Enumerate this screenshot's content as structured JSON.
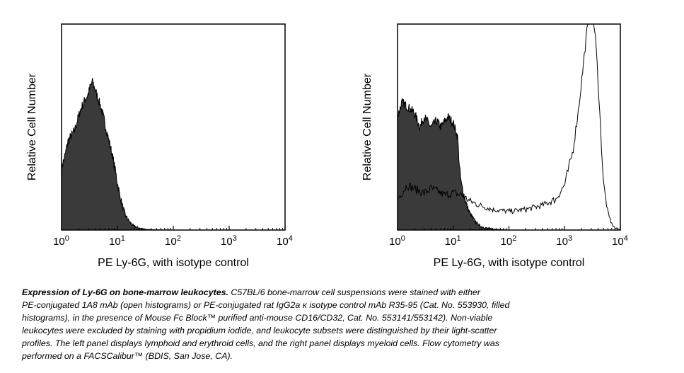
{
  "chart_data": [
    {
      "type": "area",
      "panel": "left",
      "xlabel": "PE Ly-6G, with isotype control",
      "ylabel": "Relative Cell Number",
      "xscale": "log",
      "xlim": [
        1,
        10000
      ],
      "ylim": [
        0,
        1
      ],
      "ticks": [
        {
          "base": "10",
          "exp": "0",
          "value": 1
        },
        {
          "base": "10",
          "exp": "1",
          "value": 10
        },
        {
          "base": "10",
          "exp": "2",
          "value": 100
        },
        {
          "base": "10",
          "exp": "3",
          "value": 1000
        },
        {
          "base": "10",
          "exp": "4",
          "value": 10000
        }
      ],
      "grid": false,
      "series": [
        {
          "style": "filled",
          "x": [
            1,
            1.15,
            1.3,
            1.5,
            1.7,
            2.0,
            2.3,
            2.6,
            3.0,
            3.3,
            3.6,
            4.0,
            4.5,
            5.0,
            5.6,
            6.3,
            7.1,
            8.0,
            9.0,
            10,
            11,
            12.5,
            14,
            16,
            18,
            20,
            25,
            30,
            40,
            60,
            100
          ],
          "y": [
            0.3,
            0.36,
            0.43,
            0.46,
            0.48,
            0.55,
            0.6,
            0.63,
            0.66,
            0.7,
            0.72,
            0.68,
            0.64,
            0.6,
            0.55,
            0.49,
            0.43,
            0.37,
            0.3,
            0.23,
            0.17,
            0.11,
            0.07,
            0.045,
            0.028,
            0.018,
            0.008,
            0.004,
            0.002,
            0.001,
            0
          ]
        }
      ]
    },
    {
      "type": "area",
      "panel": "right",
      "xlabel": "PE Ly-6G, with isotype control",
      "ylabel": "Relative Cell Number",
      "xscale": "log",
      "xlim": [
        1,
        10000
      ],
      "ylim": [
        0,
        1
      ],
      "ticks": [
        {
          "base": "10",
          "exp": "0",
          "value": 1
        },
        {
          "base": "10",
          "exp": "1",
          "value": 10
        },
        {
          "base": "10",
          "exp": "2",
          "value": 100
        },
        {
          "base": "10",
          "exp": "3",
          "value": 1000
        },
        {
          "base": "10",
          "exp": "4",
          "value": 10000
        }
      ],
      "grid": false,
      "series": [
        {
          "style": "filled",
          "x": [
            1,
            1.2,
            1.5,
            2.0,
            2.5,
            3.0,
            4.0,
            5.0,
            6.0,
            8.0,
            10,
            12,
            13,
            14,
            16,
            18,
            20,
            25,
            30,
            40,
            60,
            100
          ],
          "y": [
            0.55,
            0.62,
            0.6,
            0.57,
            0.5,
            0.55,
            0.5,
            0.53,
            0.5,
            0.55,
            0.52,
            0.45,
            0.3,
            0.22,
            0.16,
            0.11,
            0.08,
            0.04,
            0.02,
            0.008,
            0.003,
            0
          ]
        },
        {
          "style": "open",
          "x": [
            1,
            1.5,
            2,
            3,
            4,
            5,
            7,
            10,
            14,
            20,
            30,
            50,
            100,
            200,
            400,
            700,
            1000,
            1400,
            1800,
            2200,
            2500,
            2800,
            3200,
            3600,
            4000,
            4500,
            5000,
            6000,
            7000,
            8000,
            10000
          ],
          "y": [
            0.15,
            0.22,
            0.2,
            0.18,
            0.2,
            0.19,
            0.17,
            0.18,
            0.17,
            0.14,
            0.12,
            0.1,
            0.09,
            0.1,
            0.12,
            0.15,
            0.22,
            0.38,
            0.6,
            0.82,
            0.96,
            1.05,
            1.05,
            0.92,
            0.72,
            0.45,
            0.22,
            0.08,
            0.03,
            0.01,
            0
          ]
        }
      ]
    }
  ],
  "caption": {
    "title": "Expression of Ly-6G on bone-marrow leukocytes.",
    "line1": " C57BL/6 bone-marrow cell suspensions were stained with either",
    "line2": "PE-conjugated 1A8 mAb (open histograms) or PE-conjugated rat IgG2a κ isotype control mAb R35-95 (Cat. No. 553930, filled",
    "line3": "histograms), in the presence of Mouse Fc Block™ purified anti-mouse CD16/CD32, Cat. No. 553141/553142). Non-viable",
    "line4": "leukocytes were excluded by staining with propidium iodide, and leukocyte subsets were distinguished by their light-scatter",
    "line5": "profiles. The left panel displays lymphoid and erythroid cells, and the right panel displays myeloid cells. Flow cytometry was",
    "line6": "performed on a FACSCalibur™ (BDIS, San Jose, CA)."
  },
  "colors": {
    "fill": "#3a3a3a",
    "line": "#000000",
    "background": "#ffffff"
  }
}
